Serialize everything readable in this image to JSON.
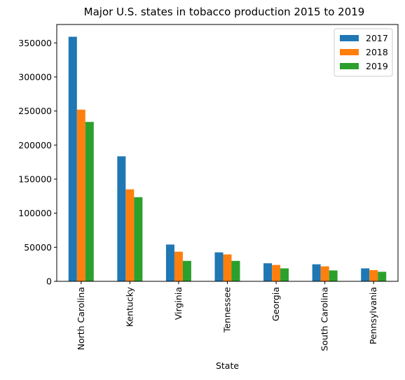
{
  "chart_data": {
    "type": "bar",
    "title": "Major U.S. states in tobacco production 2015 to 2019",
    "xlabel": "State",
    "ylabel": "",
    "categories": [
      "North Carolina",
      "Kentucky",
      "Virginia",
      "Tennessee",
      "Georgia",
      "South Carolina",
      "Pennsylvania"
    ],
    "series": [
      {
        "name": "2017",
        "color": "#1f77b4",
        "values": [
          359000,
          183500,
          54000,
          42500,
          26500,
          25000,
          19000
        ]
      },
      {
        "name": "2018",
        "color": "#ff7f0e",
        "values": [
          252000,
          135000,
          43500,
          39500,
          24000,
          22000,
          16500
        ]
      },
      {
        "name": "2019",
        "color": "#2ca02c",
        "values": [
          234000,
          123500,
          30000,
          30000,
          19000,
          16000,
          14000
        ]
      }
    ],
    "ylim": [
      0,
      377000
    ],
    "yticks": [
      0,
      50000,
      100000,
      150000,
      200000,
      250000,
      300000,
      350000
    ],
    "grid": false,
    "legend_position": "top-right"
  }
}
